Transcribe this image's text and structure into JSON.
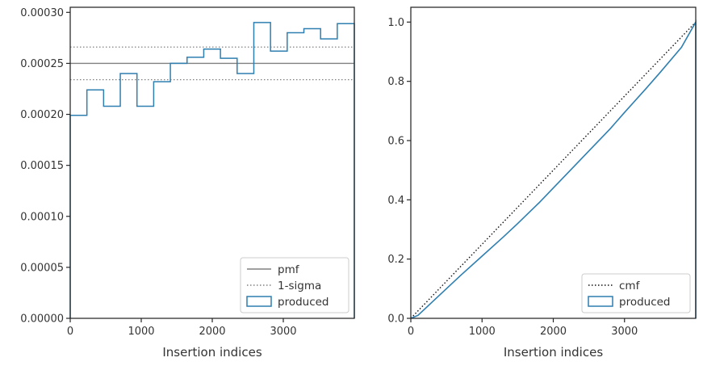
{
  "chart_data": [
    {
      "type": "line",
      "subtype": "histogram-step",
      "xlabel": "Insertion indices",
      "ylabel": "",
      "xlim": [
        0,
        4000
      ],
      "ylim": [
        0,
        0.000305
      ],
      "xticks": [
        0,
        1000,
        2000,
        3000
      ],
      "xtick_labels": [
        "0",
        "1000",
        "2000",
        "3000"
      ],
      "yticks": [
        0,
        5e-05,
        0.0001,
        0.00015,
        0.0002,
        0.00025,
        0.0003
      ],
      "ytick_labels": [
        "0.00000",
        "0.00005",
        "0.00010",
        "0.00015",
        "0.00020",
        "0.00025",
        "0.00030"
      ],
      "grid": false,
      "legend": {
        "position": "lower-right",
        "entries": [
          {
            "label": "pmf",
            "style": "solid-gray"
          },
          {
            "label": "1-sigma",
            "style": "dotted-gray"
          },
          {
            "label": "produced",
            "style": "box-blue"
          }
        ]
      },
      "pmf": 0.00025,
      "sigma_band": [
        0.000234,
        0.000266
      ],
      "series": [
        {
          "name": "produced",
          "color": "#2f7fb0",
          "bin_edges": [
            0,
            235,
            470,
            705,
            940,
            1175,
            1410,
            1645,
            1880,
            2115,
            2350,
            2585,
            2820,
            3055,
            3290,
            3525,
            3760,
            4000
          ],
          "values": [
            0.000199,
            0.000224,
            0.000208,
            0.00024,
            0.000208,
            0.000232,
            0.00025,
            0.000256,
            0.000264,
            0.000255,
            0.00024,
            0.00029,
            0.000262,
            0.00028,
            0.000284,
            0.000274,
            0.000289
          ]
        }
      ]
    },
    {
      "type": "line",
      "subtype": "cumulative",
      "xlabel": "Insertion indices",
      "ylabel": "",
      "xlim": [
        0,
        4000
      ],
      "ylim": [
        0,
        1.05
      ],
      "xticks": [
        0,
        1000,
        2000,
        3000
      ],
      "xtick_labels": [
        "0",
        "1000",
        "2000",
        "3000"
      ],
      "yticks": [
        0,
        0.2,
        0.4,
        0.6,
        0.8,
        1.0
      ],
      "ytick_labels": [
        "0.0",
        "0.2",
        "0.4",
        "0.6",
        "0.8",
        "1.0"
      ],
      "grid": false,
      "legend": {
        "position": "lower-right",
        "entries": [
          {
            "label": "cmf",
            "style": "dotted-black"
          },
          {
            "label": "produced",
            "style": "box-blue"
          }
        ]
      },
      "series": [
        {
          "name": "cmf",
          "color": "#111111",
          "x": [
            0,
            4000
          ],
          "y": [
            0,
            1.0
          ]
        },
        {
          "name": "produced",
          "color": "#2f7fb0",
          "x": [
            0,
            100,
            300,
            500,
            700,
            1000,
            1300,
            1500,
            1800,
            2000,
            2300,
            2500,
            2800,
            3000,
            3300,
            3500,
            3800,
            4000
          ],
          "y": [
            0,
            0.01,
            0.055,
            0.1,
            0.145,
            0.21,
            0.275,
            0.32,
            0.39,
            0.44,
            0.515,
            0.565,
            0.64,
            0.695,
            0.775,
            0.83,
            0.915,
            1.0
          ]
        }
      ]
    }
  ]
}
